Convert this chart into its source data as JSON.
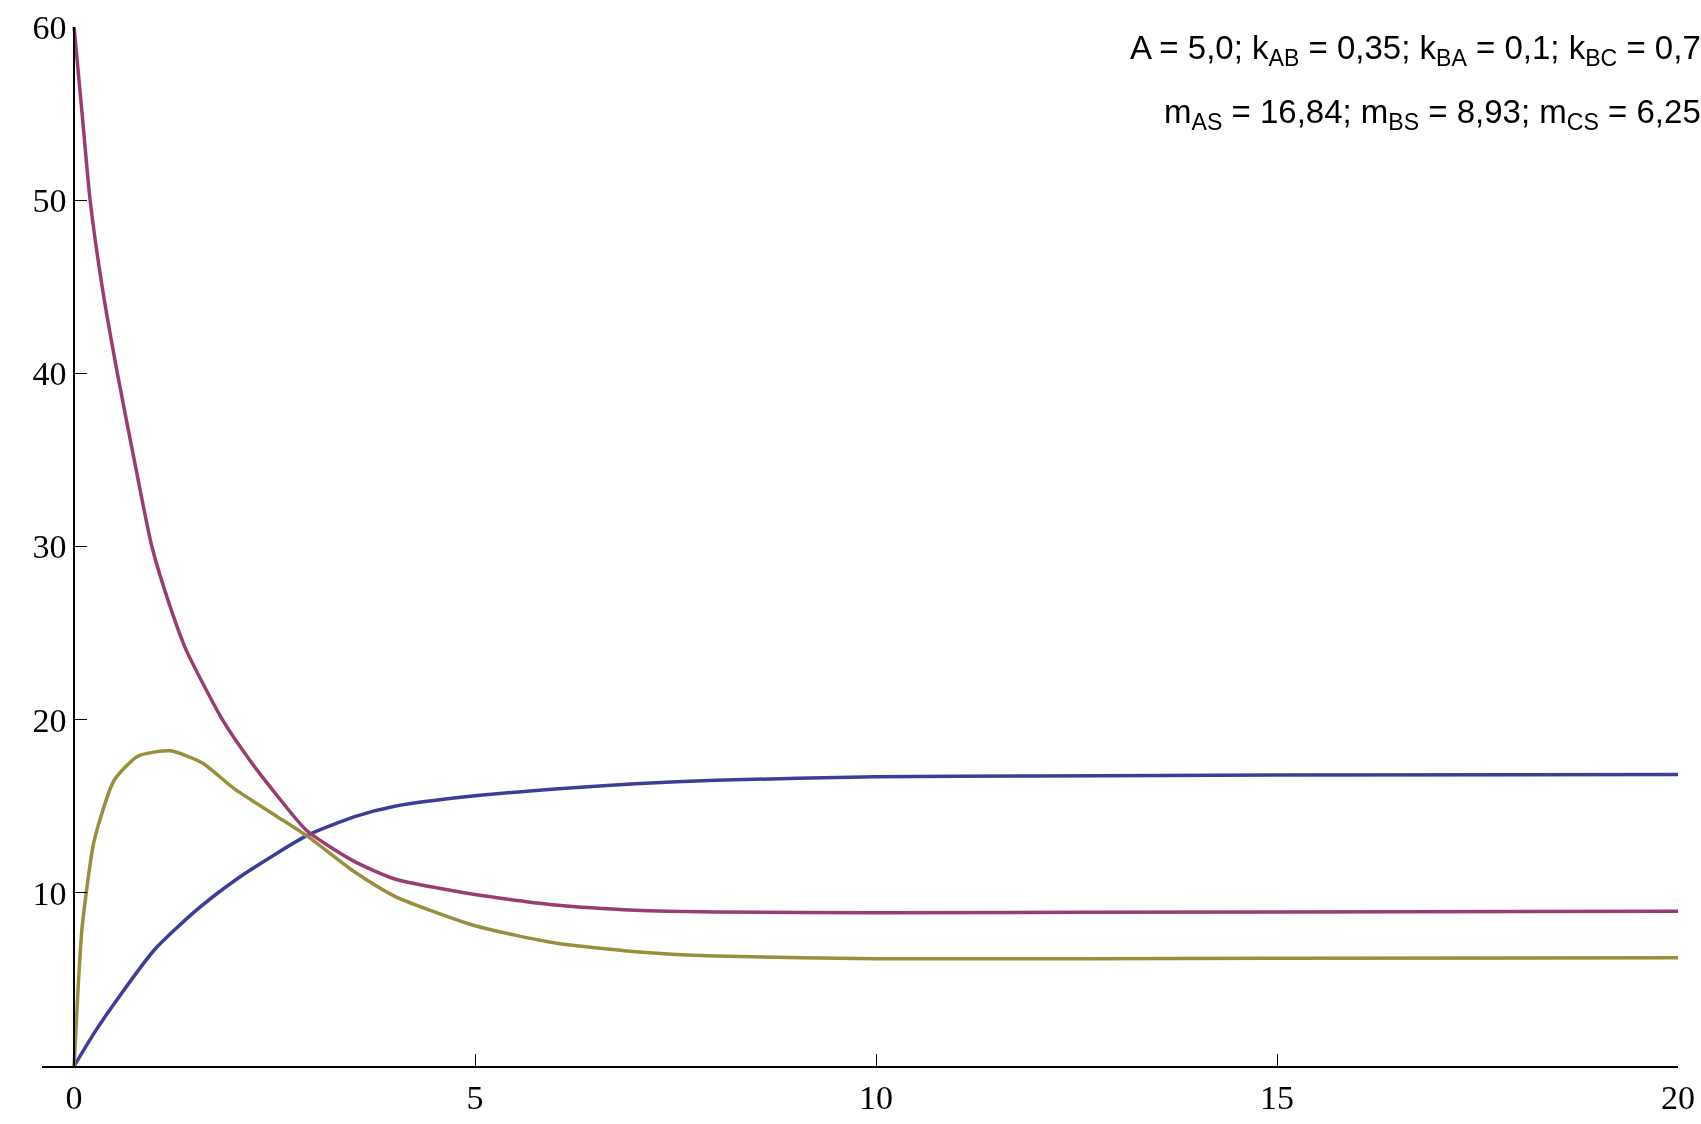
{
  "chart_data": {
    "type": "line",
    "annotations": [
      "A = 5,0; k$_{AB}$ = 0,35; k$_{BA}$ = 0,1; k$_{BC}$ = 0,7",
      "m$_{AS}$ = 16,84; m$_{BS}$ = 8,93; m$_{CS}$ = 6,25"
    ],
    "series": [
      {
        "color": "#3d3d99",
        "x": [
          0,
          0.25,
          0.5,
          1,
          1.5,
          2,
          2.5,
          2.9,
          3.5,
          4,
          5,
          6,
          7,
          8,
          10,
          12,
          15,
          20
        ],
        "values": [
          0,
          1.9,
          3.6,
          6.7,
          8.9,
          10.7,
          12.2,
          13.3,
          14.4,
          15.0,
          15.6,
          16.0,
          16.3,
          16.5,
          16.7,
          16.75,
          16.8,
          16.84
        ]
      },
      {
        "color": "#993d70",
        "x": [
          0,
          0.1,
          0.2,
          0.35,
          0.54,
          0.75,
          0.97,
          1.2,
          1.4,
          1.85,
          2.2,
          2.5,
          2.9,
          3.5,
          4,
          5,
          6,
          7,
          8,
          10,
          15,
          20
        ],
        "values": [
          60,
          55,
          50,
          45,
          40,
          35,
          30,
          26.5,
          24,
          20,
          17.6,
          15.8,
          13.6,
          11.8,
          10.8,
          9.9,
          9.3,
          9.0,
          8.9,
          8.85,
          8.9,
          8.93
        ]
      },
      {
        "color": "#998e3d",
        "x": [
          0,
          0.05,
          0.1,
          0.25,
          0.5,
          0.8,
          1.2,
          1.6,
          2,
          2.5,
          2.9,
          3.5,
          4,
          5,
          6,
          7,
          8,
          10,
          15,
          20
        ],
        "values": [
          0,
          4.5,
          8,
          13,
          16.5,
          17.9,
          18.2,
          17.5,
          16,
          14.5,
          13.3,
          11.2,
          9.8,
          8.1,
          7.1,
          6.6,
          6.35,
          6.2,
          6.22,
          6.25
        ]
      }
    ],
    "xlim": [
      -0.4,
      20
    ],
    "xticks": [
      0,
      5,
      10,
      15,
      20
    ],
    "ylim": [
      0,
      60
    ],
    "yticks": [
      10,
      20,
      30,
      40,
      50,
      60
    ],
    "grid": false
  }
}
